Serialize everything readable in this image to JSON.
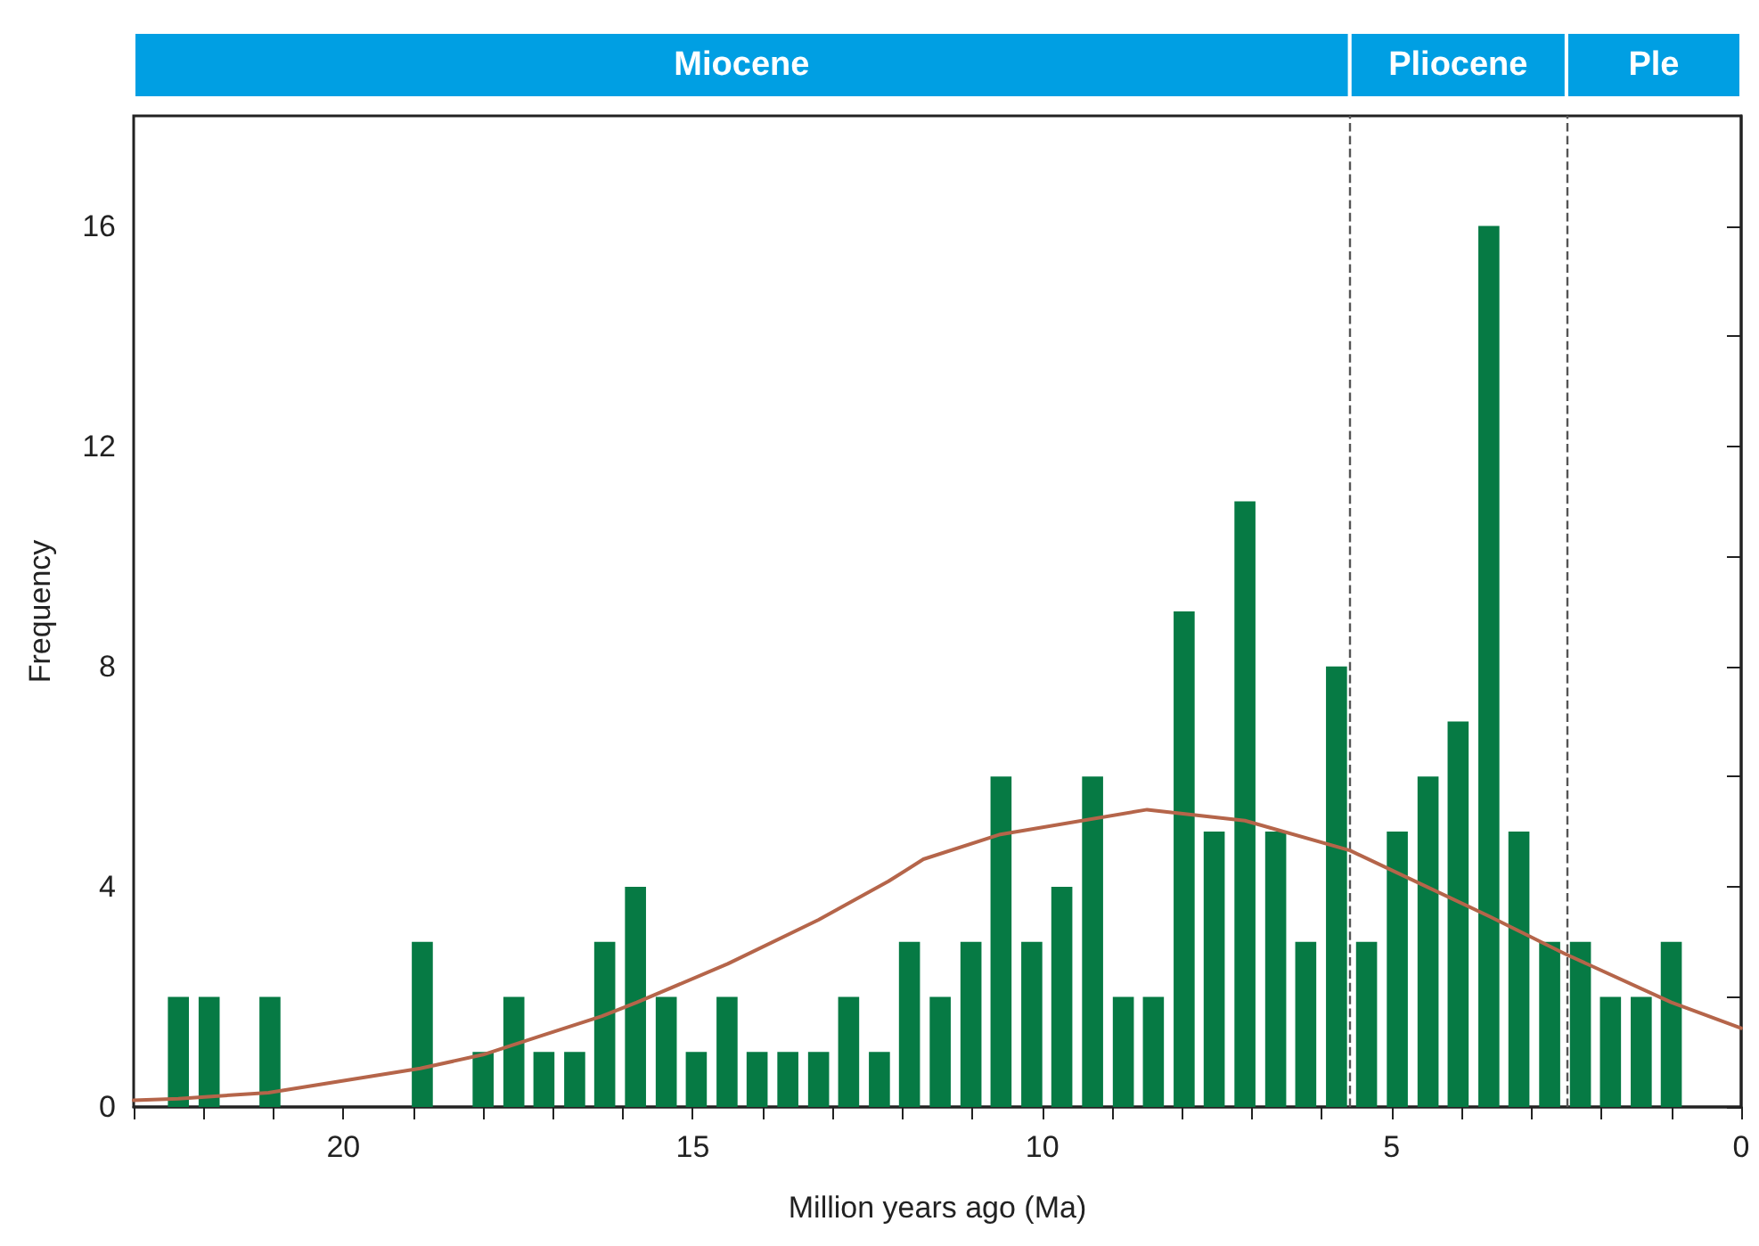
{
  "chart_data": {
    "type": "bar",
    "xlabel": "Million years ago (Ma)",
    "ylabel": "Frequency",
    "series": [
      {
        "color": "#067a44",
        "x": [
          22.36,
          21.92,
          21.05,
          18.87,
          18.0,
          17.56,
          17.13,
          16.69,
          16.26,
          15.82,
          15.38,
          14.95,
          14.51,
          14.08,
          13.64,
          13.2,
          12.77,
          12.33,
          11.9,
          11.46,
          11.02,
          10.59,
          10.15,
          9.72,
          9.28,
          8.84,
          8.41,
          7.97,
          7.54,
          7.1,
          6.66,
          6.23,
          5.79,
          5.36,
          4.92,
          4.48,
          4.05,
          3.61,
          3.18,
          2.74,
          2.3,
          1.87,
          1.43,
          1.0
        ],
        "values": [
          2,
          2,
          2,
          3,
          1,
          2,
          1,
          1,
          3,
          4,
          2,
          1,
          2,
          1,
          1,
          1,
          2,
          1,
          3,
          2,
          3,
          6,
          3,
          4,
          6,
          2,
          2,
          9,
          5,
          11,
          5,
          3,
          8,
          3,
          5,
          6,
          7,
          16,
          5,
          3,
          3,
          2,
          2,
          3
        ]
      },
      {
        "type": "line",
        "color": "#b5654a",
        "x": [
          23,
          22.36,
          21.07,
          18.9,
          18.0,
          17.15,
          16.3,
          15.8,
          14.5,
          13.2,
          12.2,
          11.7,
          10.6,
          8.5,
          7.1,
          5.6,
          3.6,
          2.52,
          1.0,
          0
        ],
        "values": [
          0.12,
          0.15,
          0.26,
          0.7,
          0.95,
          1.3,
          1.65,
          1.9,
          2.6,
          3.4,
          4.1,
          4.5,
          4.95,
          5.4,
          5.2,
          4.66,
          3.46,
          2.78,
          1.9,
          1.43
        ]
      }
    ],
    "xlim": [
      23,
      0
    ],
    "xticks": [
      {
        "value": 23,
        "label": null
      },
      {
        "value": 22,
        "label": null
      },
      {
        "value": 21,
        "label": null
      },
      20,
      {
        "value": 19,
        "label": null
      },
      {
        "value": 18,
        "label": null
      },
      {
        "value": 17,
        "label": null
      },
      {
        "value": 16,
        "label": null
      },
      15,
      {
        "value": 14,
        "label": null
      },
      {
        "value": 13,
        "label": null
      },
      {
        "value": 12,
        "label": null
      },
      {
        "value": 11,
        "label": null
      },
      10,
      {
        "value": 9,
        "label": null
      },
      {
        "value": 8,
        "label": null
      },
      {
        "value": 7,
        "label": null
      },
      {
        "value": 6,
        "label": null
      },
      5,
      {
        "value": 4,
        "label": null
      },
      {
        "value": 3,
        "label": null
      },
      {
        "value": 2,
        "label": null
      },
      {
        "value": 1,
        "label": null
      },
      0
    ],
    "ylim": [
      0,
      18
    ],
    "yticks": [
      0,
      {
        "value": 2,
        "label": null
      },
      4,
      {
        "value": 6,
        "label": null
      },
      8,
      {
        "value": 10,
        "label": null
      },
      12,
      {
        "value": 14,
        "label": null
      },
      16
    ],
    "ref_lines": [
      {
        "axis": "x",
        "value": 5.6,
        "color": "#555555",
        "line_style": "dashed"
      },
      {
        "axis": "x",
        "value": 2.5,
        "color": "#555555",
        "line_style": "dashed"
      }
    ],
    "annotations": [
      "Miocene",
      "Pliocene",
      "Ple"
    ],
    "marker": "none",
    "line_style": "solid"
  }
}
